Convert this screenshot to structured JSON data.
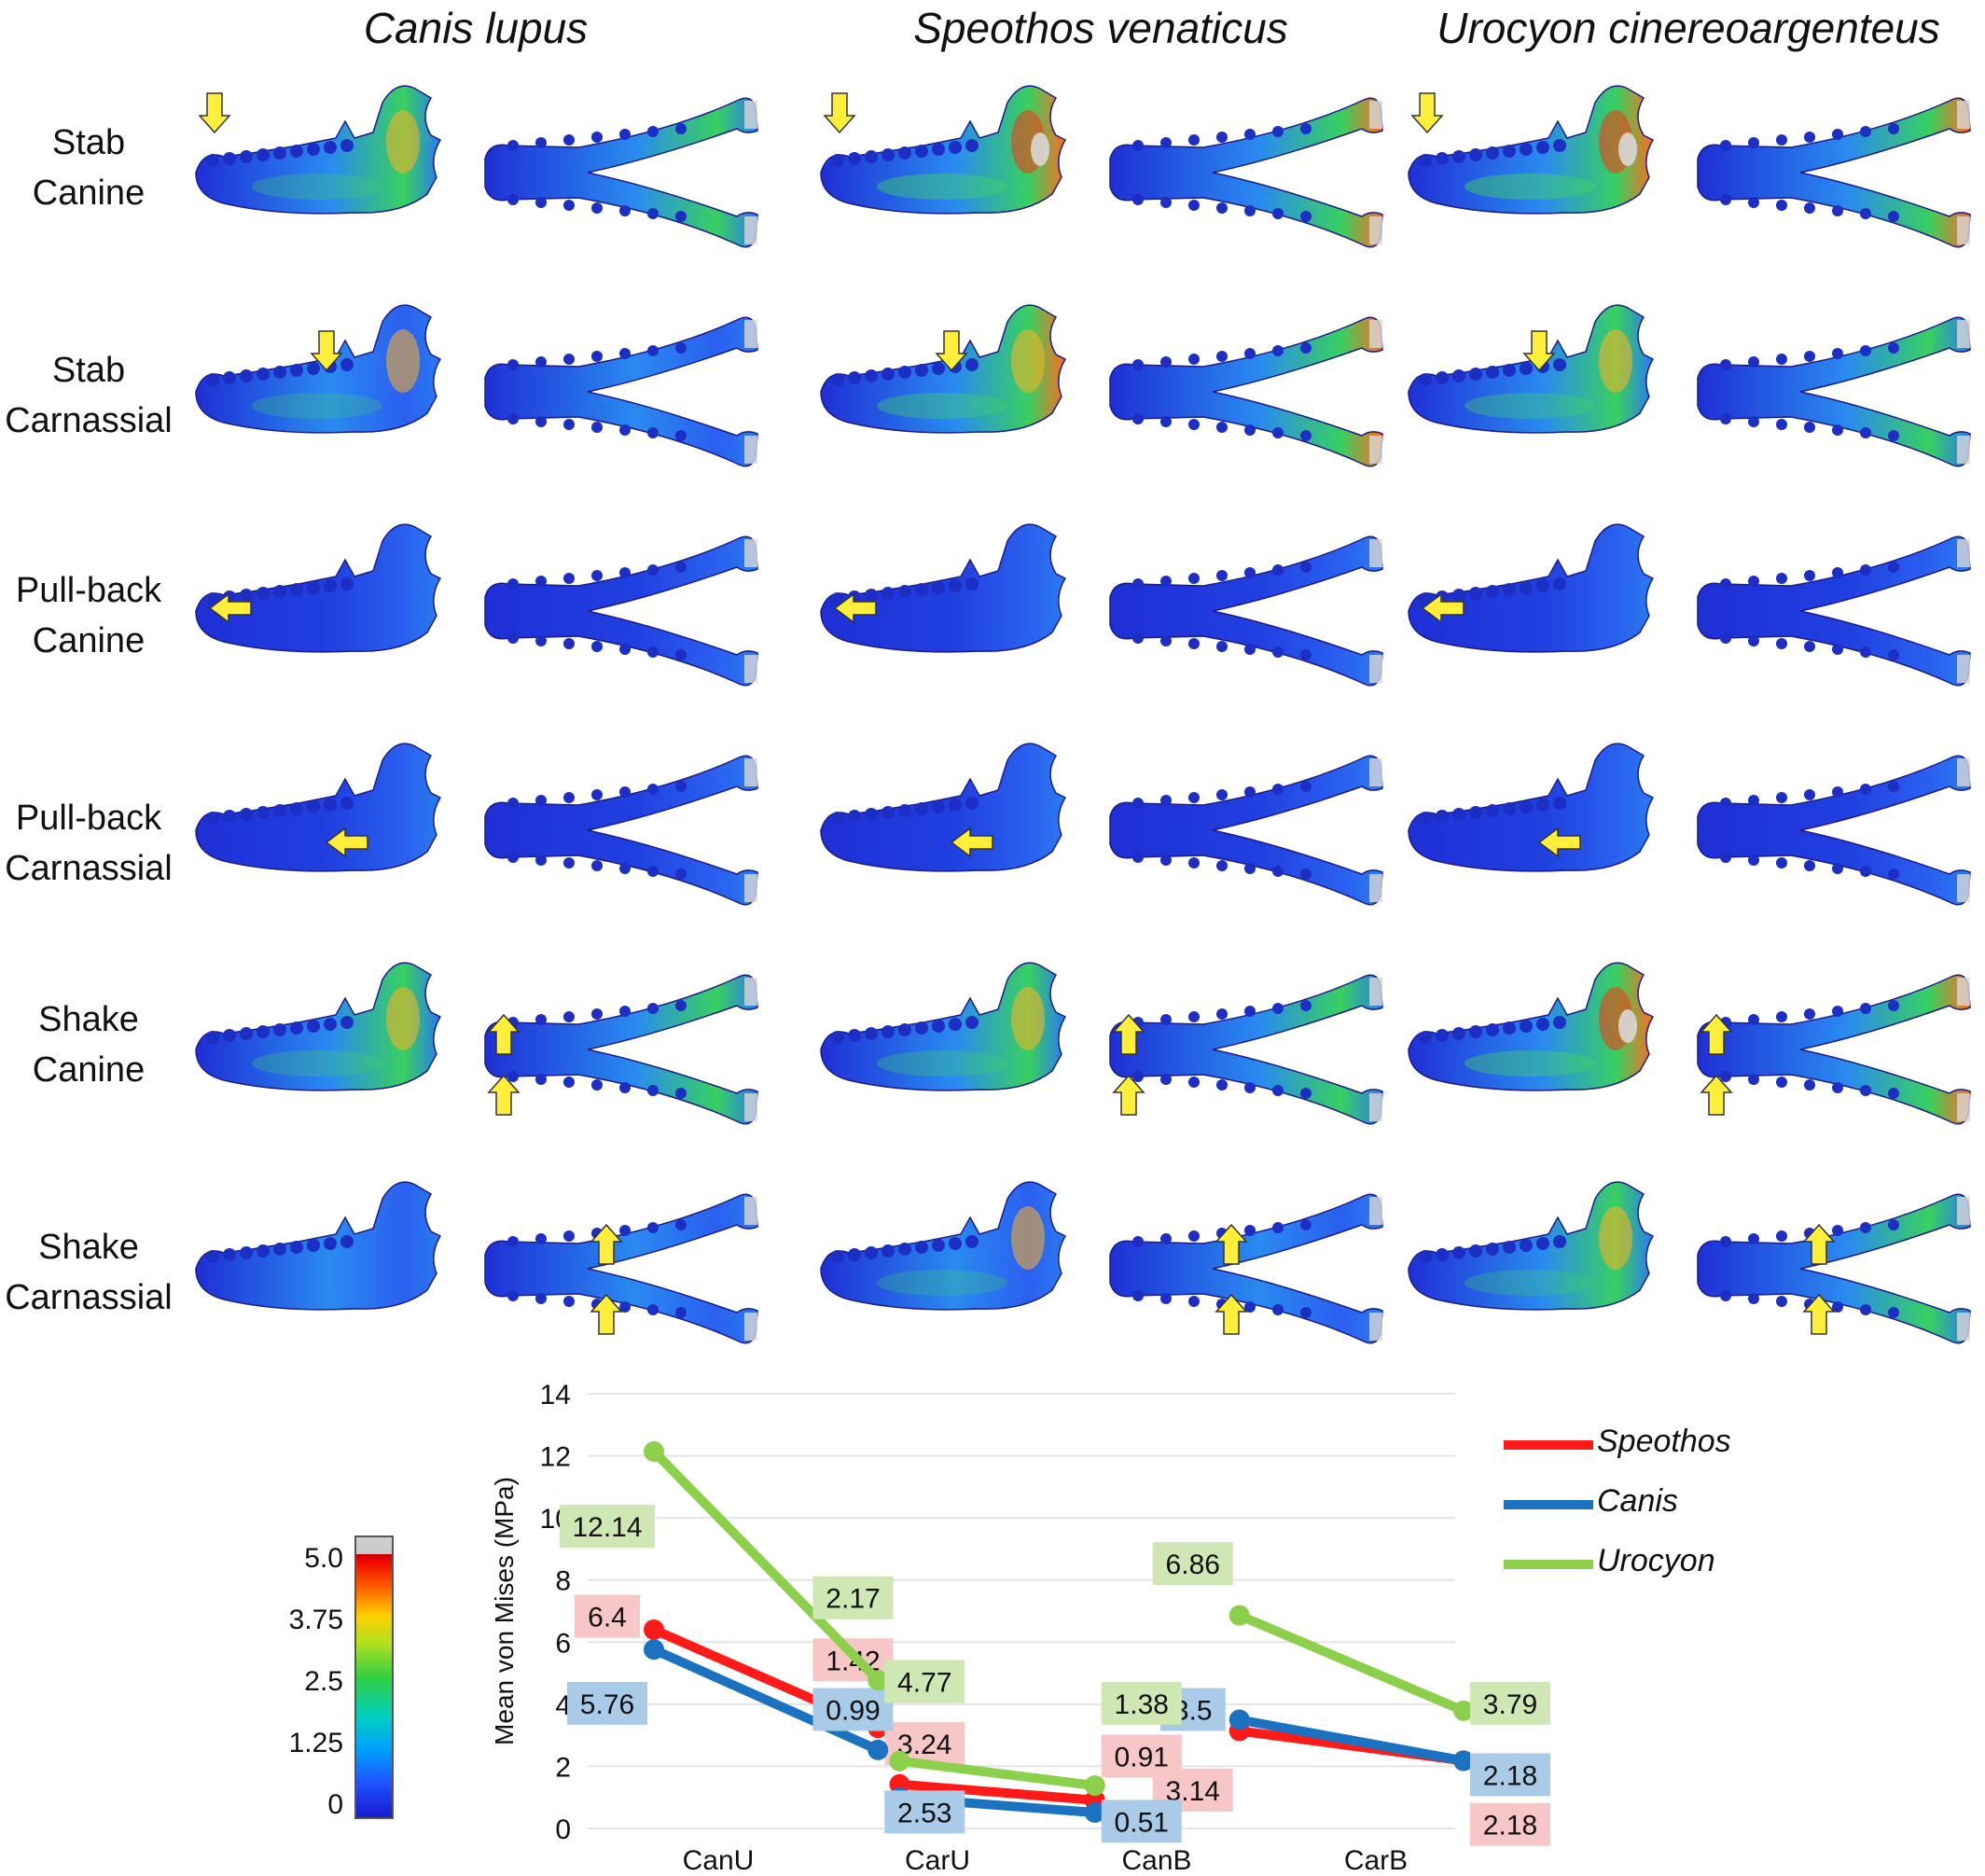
{
  "species": [
    "Canis lupus",
    "Speothos venaticus",
    "Urocyon cinereoargenteus"
  ],
  "rows": [
    {
      "line1": "Stab",
      "line2": "Canine"
    },
    {
      "line1": "Stab",
      "line2": "Carnassial"
    },
    {
      "line1": "Pull-back",
      "line2": "Canine"
    },
    {
      "line1": "Pull-back",
      "line2": "Carnassial"
    },
    {
      "line1": "Shake",
      "line2": "Canine"
    },
    {
      "line1": "Shake",
      "line2": "Carnassial"
    }
  ],
  "colorbar": {
    "ticks": [
      "5.0",
      "3.75",
      "2.5",
      "1.25",
      "0"
    ],
    "colors": {
      "low": "#1a1ad0",
      "mid": "#30d040",
      "high": "#ee0000",
      "over": "#c8c8c8"
    }
  },
  "arrow_color": "#ffef3a",
  "chart_data": {
    "type": "line",
    "ylabel": "Mean von Mises (MPa)",
    "ylim": [
      0,
      14
    ],
    "yticks": [
      0,
      2,
      4,
      6,
      8,
      10,
      12,
      14
    ],
    "categories": [
      "CanU",
      "CarU",
      "CanB",
      "CarB"
    ],
    "grid": true,
    "legend_position": "top-right",
    "series": [
      {
        "name": "Speothos",
        "color": "#ff1a1a",
        "label_bg": "#f7c6c6",
        "segments": [
          [
            6.4,
            3.24
          ],
          [
            1.42,
            0.91
          ],
          [
            3.14,
            2.18
          ]
        ],
        "labels": [
          "6.4",
          "3.24",
          "1.42",
          "0.91",
          "3.14",
          "2.18"
        ]
      },
      {
        "name": "Canis",
        "color": "#1a72c0",
        "label_bg": "#a9cbe8",
        "segments": [
          [
            5.76,
            2.53
          ],
          [
            0.99,
            0.51
          ],
          [
            3.5,
            2.18
          ]
        ],
        "labels": [
          "5.76",
          "2.53",
          "0.99",
          "0.51",
          "3.5",
          "2.18"
        ]
      },
      {
        "name": "Urocyon",
        "color": "#8ccf4a",
        "label_bg": "#cfe7b3",
        "segments": [
          [
            12.14,
            4.77
          ],
          [
            2.17,
            1.38
          ],
          [
            6.86,
            3.79
          ]
        ],
        "labels": [
          "12.14",
          "4.77",
          "2.17",
          "1.38",
          "6.86",
          "3.79"
        ]
      }
    ]
  }
}
